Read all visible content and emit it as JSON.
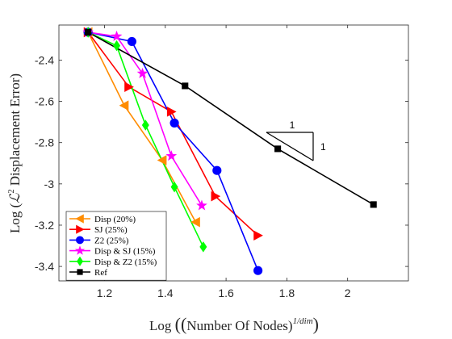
{
  "chart_data": {
    "type": "line",
    "xlabel": "Log ((Number Of Nodes)^1/dim)",
    "ylabel": "Log (ℒ² Displacement Error)",
    "xlim": [
      1.05,
      2.2
    ],
    "ylim": [
      -3.47,
      -2.23
    ],
    "xticks": [
      "1.2",
      "1.4",
      "1.6",
      "1.8",
      "2"
    ],
    "yticks": [
      "-2.4",
      "-2.6",
      "-2.8",
      "-3",
      "-3.2",
      "-3.4"
    ],
    "xtick_values": [
      1.2,
      1.4,
      1.6,
      1.8,
      2.0
    ],
    "ytick_values": [
      -2.4,
      -2.6,
      -2.8,
      -3.0,
      -3.2,
      -3.4
    ],
    "grid": false,
    "legend_position": "bottom-left",
    "series": [
      {
        "name": "Disp (20%)",
        "color": "#ff8c00",
        "marker": "triangle-left",
        "x": [
          1.146,
          1.265,
          1.39,
          1.5
        ],
        "y": [
          -2.265,
          -2.62,
          -2.885,
          -3.185
        ]
      },
      {
        "name": "SJ (25%)",
        "color": "#ff0000",
        "marker": "triangle-right",
        "x": [
          1.146,
          1.28,
          1.42,
          1.565,
          1.705
        ],
        "y": [
          -2.265,
          -2.53,
          -2.65,
          -3.06,
          -3.25
        ]
      },
      {
        "name": "Z2 (25%)",
        "color": "#0000ff",
        "marker": "circle",
        "x": [
          1.146,
          1.29,
          1.43,
          1.57,
          1.705
        ],
        "y": [
          -2.265,
          -2.31,
          -2.705,
          -2.935,
          -3.42
        ]
      },
      {
        "name": "Disp & SJ (15%)",
        "color": "#ff00ff",
        "marker": "star",
        "x": [
          1.146,
          1.24,
          1.325,
          1.42,
          1.52
        ],
        "y": [
          -2.265,
          -2.285,
          -2.465,
          -2.865,
          -3.105
        ]
      },
      {
        "name": "Disp & Z2 (15%)",
        "color": "#00ff00",
        "marker": "diamond",
        "x": [
          1.146,
          1.24,
          1.335,
          1.43,
          1.525
        ],
        "y": [
          -2.265,
          -2.33,
          -2.715,
          -3.015,
          -3.305
        ]
      },
      {
        "name": "Ref",
        "color": "#000000",
        "marker": "square",
        "x": [
          1.146,
          1.465,
          1.77,
          2.085
        ],
        "y": [
          -2.265,
          -2.525,
          -2.83,
          -3.1
        ]
      }
    ],
    "slope_triangle": {
      "horizontal_label": "1",
      "vertical_label": "1"
    }
  }
}
